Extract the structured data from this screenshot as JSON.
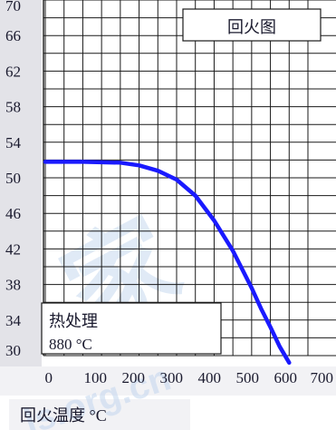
{
  "chart_data": {
    "type": "line",
    "title": "回火图",
    "xlabel": "回火温度 °C",
    "ylabel": "",
    "xlim": [
      0,
      700
    ],
    "ylim": [
      30,
      70
    ],
    "x_ticks": [
      "0",
      "100",
      "200",
      "300",
      "400",
      "500",
      "600",
      "700"
    ],
    "y_ticks": [
      "70",
      "66",
      "62",
      "58",
      "54",
      "50",
      "46",
      "42",
      "38",
      "34",
      "30"
    ],
    "grid": true,
    "annotation": {
      "line1": "热处理",
      "line2": "880 °C"
    },
    "series": [
      {
        "color": "#1a1aff",
        "x": [
          0,
          100,
          200,
          250,
          300,
          350,
          400,
          450,
          500,
          550,
          575,
          600,
          625,
          650
        ],
        "y": [
          51.8,
          51.8,
          51.7,
          51.4,
          50.8,
          49.8,
          48.0,
          45.2,
          41.8,
          37.6,
          35.3,
          33.2,
          31.0,
          29.2
        ]
      }
    ]
  },
  "watermark": {
    "text1": "家",
    "text2": "ls.org.cn"
  },
  "colors": {
    "grid": "#1a1a1a",
    "curve": "#1a1aff",
    "tick_box": "#e3e3e8",
    "watermark": "#c7d9f0"
  }
}
